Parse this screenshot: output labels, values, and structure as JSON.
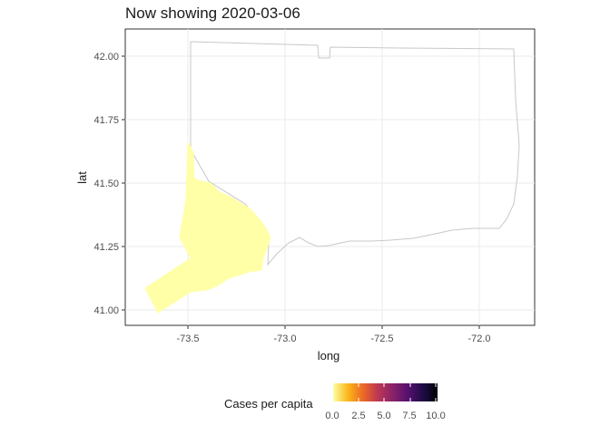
{
  "title": "Now showing 2020-03-06",
  "x_axis": {
    "label": "long",
    "ticks": [
      "-73.5",
      "-73.0",
      "-72.5",
      "-72.0"
    ]
  },
  "y_axis": {
    "label": "lat",
    "ticks": [
      "41.00",
      "41.25",
      "41.50",
      "41.75",
      "42.00"
    ]
  },
  "legend": {
    "title": "Cases per capita",
    "ticks": [
      "0.0",
      "2.5",
      "5.0",
      "7.5",
      "10.0"
    ],
    "colors": [
      "#fcffa4",
      "#fbb61a",
      "#ed6925",
      "#bc3754",
      "#89226a",
      "#56106e",
      "#1f0c48",
      "#000004"
    ]
  },
  "map": {
    "state": "Connecticut",
    "highlighted_region_fill": "#ffffa8",
    "outline_color": "#c8c8c8"
  }
}
